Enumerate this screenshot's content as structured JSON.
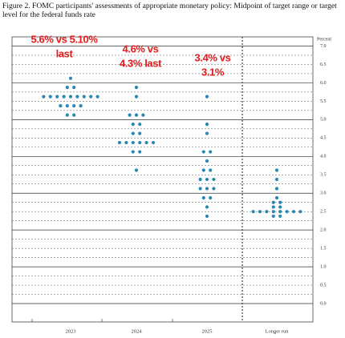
{
  "chart_data": {
    "type": "dot",
    "title": "Figure 2.  FOMC participants' assessments of appropriate monetary policy: Midpoint of target range or target level for the federal funds rate",
    "y_axis_label": "Percent",
    "categories": [
      "2023",
      "2024",
      "2025",
      "Longer run"
    ],
    "values": [
      [
        6.125,
        5.875,
        5.875,
        5.625,
        5.625,
        5.625,
        5.625,
        5.625,
        5.625,
        5.625,
        5.625,
        5.625,
        5.375,
        5.375,
        5.375,
        5.375,
        5.125,
        5.125
      ],
      [
        5.875,
        5.625,
        5.125,
        5.125,
        5.125,
        4.875,
        4.875,
        4.625,
        4.625,
        4.375,
        4.375,
        4.375,
        4.375,
        4.375,
        4.375,
        4.125,
        4.125,
        3.625
      ],
      [
        5.625,
        4.875,
        4.625,
        4.125,
        4.125,
        3.875,
        3.625,
        3.625,
        3.375,
        3.375,
        3.375,
        3.125,
        3.125,
        3.125,
        2.875,
        2.875,
        2.625,
        2.375
      ],
      [
        3.625,
        3.375,
        3.125,
        2.875,
        2.75,
        2.75,
        2.625,
        2.625,
        2.5,
        2.5,
        2.5,
        2.5,
        2.5,
        2.5,
        2.5,
        2.5,
        2.375,
        2.375
      ]
    ],
    "color": "#2a86b3",
    "annotations": [
      {
        "lines": [
          "5.6% vs 5.10%",
          "last"
        ],
        "color": "#e31b1b"
      },
      {
        "lines": [
          "4.6% vs",
          "4.3% last"
        ],
        "color": "#e31b1b"
      },
      {
        "lines": [
          "3.4% vs",
          "3.1%"
        ],
        "color": "#e31b1b"
      }
    ],
    "ylim": [
      -0.5,
      7.25
    ],
    "yticks": [
      {
        "value": 0,
        "label": "0.0"
      },
      {
        "value": 0.5,
        "label": "0.5"
      },
      {
        "value": 1,
        "label": "1.0"
      },
      {
        "value": 1.5,
        "label": "1.5"
      },
      {
        "value": 2,
        "label": "2.0"
      },
      {
        "value": 2.5,
        "label": "2.5"
      },
      {
        "value": 3,
        "label": "3.0"
      },
      {
        "value": 3.5,
        "label": "3.5"
      },
      {
        "value": 4,
        "label": "4.0"
      },
      {
        "value": 4.5,
        "label": "4.5"
      },
      {
        "value": 5,
        "label": "5.0"
      },
      {
        "value": 5.5,
        "label": "5.5"
      },
      {
        "value": 6,
        "label": "6.0"
      },
      {
        "value": 6.5,
        "label": "6.5"
      },
      {
        "value": 7,
        "label": "7.0"
      }
    ],
    "minor_yticks": [
      0.25,
      0.75,
      1.25,
      1.75,
      2.25,
      2.75,
      3.25,
      3.75,
      4.25,
      4.75,
      5.25,
      5.75,
      6.25,
      6.75,
      7.25
    ],
    "grid": true
  }
}
